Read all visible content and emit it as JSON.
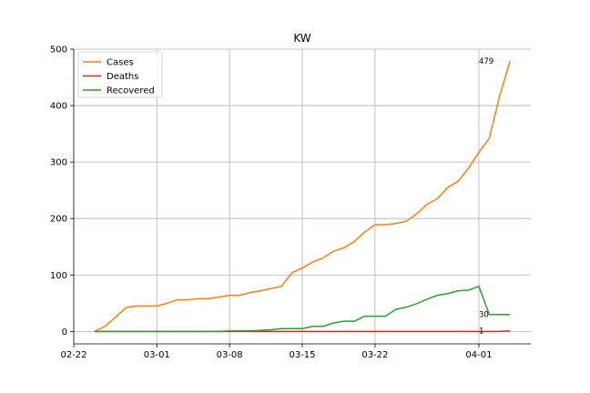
{
  "chart_data": {
    "type": "line",
    "title": "KW",
    "xlabel": "",
    "ylabel": "",
    "x_start": "2020-02-24",
    "xlim": [
      "2020-02-22",
      "2020-04-06"
    ],
    "ylim": [
      -22,
      500
    ],
    "x_ticks": [
      {
        "date": "2020-02-22",
        "label": "02-22"
      },
      {
        "date": "2020-03-01",
        "label": "03-01"
      },
      {
        "date": "2020-03-08",
        "label": "03-08"
      },
      {
        "date": "2020-03-15",
        "label": "03-15"
      },
      {
        "date": "2020-03-22",
        "label": "03-22"
      },
      {
        "date": "2020-04-01",
        "label": "04-01"
      }
    ],
    "y_ticks": [
      0,
      100,
      200,
      300,
      400,
      500
    ],
    "grid": true,
    "legend_position": "top-left",
    "series": [
      {
        "name": "Cases",
        "color": "#ff7f0e",
        "values": [
          0,
          9,
          25,
          42,
          45,
          45,
          45,
          50,
          56,
          56,
          58,
          58,
          61,
          64,
          64,
          69,
          72,
          76,
          80,
          104,
          112,
          123,
          130,
          142,
          148,
          159,
          176,
          189,
          189,
          191,
          195,
          208,
          225,
          235,
          255,
          266,
          289,
          317,
          342,
          417,
          479
        ]
      },
      {
        "name": "Deaths",
        "color": "#d62728",
        "values": [
          0,
          0,
          0,
          0,
          0,
          0,
          0,
          0,
          0,
          0,
          0,
          0,
          0,
          0,
          0,
          0,
          0,
          0,
          0,
          0,
          0,
          0,
          0,
          0,
          0,
          0,
          0,
          0,
          0,
          0,
          0,
          0,
          0,
          0,
          0,
          0,
          0,
          0,
          0,
          0,
          1
        ]
      },
      {
        "name": "Recovered",
        "color": "#2ca02c",
        "values": [
          0,
          0,
          0,
          0,
          0,
          0,
          0,
          0,
          0,
          0,
          0,
          0,
          0,
          1,
          1,
          1,
          2,
          3,
          5,
          5,
          5,
          9,
          9,
          15,
          18,
          18,
          27,
          27,
          27,
          39,
          43,
          49,
          57,
          64,
          67,
          72,
          73,
          80,
          30,
          30,
          30
        ]
      }
    ],
    "annotations": [
      {
        "text": "479",
        "series": "Cases"
      },
      {
        "text": "30",
        "series": "Recovered"
      },
      {
        "text": "1",
        "series": "Deaths"
      }
    ]
  }
}
